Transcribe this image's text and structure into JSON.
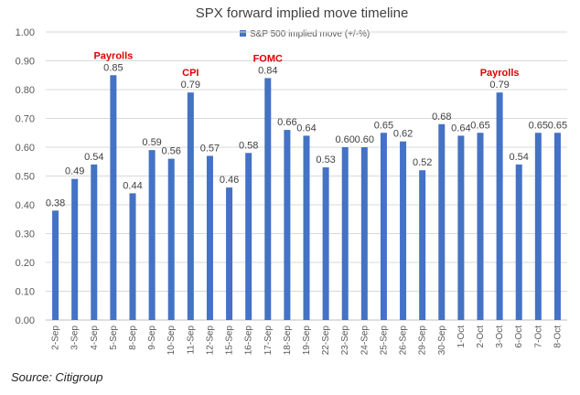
{
  "chart_data": {
    "type": "bar",
    "title": "SPX forward implied move timeline",
    "legend": "S&P 500 implied move (+/-%)",
    "legend_position": "top-center",
    "series_color": "#4472C4",
    "event_color": "#E00000",
    "ylim": [
      0,
      1.0
    ],
    "yticks": [
      "0.00",
      "0.10",
      "0.20",
      "0.30",
      "0.40",
      "0.50",
      "0.60",
      "0.70",
      "0.80",
      "0.90",
      "1.00"
    ],
    "grid": true,
    "categories": [
      "2-Sep",
      "3-Sep",
      "4-Sep",
      "5-Sep",
      "8-Sep",
      "9-Sep",
      "10-Sep",
      "11-Sep",
      "12-Sep",
      "15-Sep",
      "16-Sep",
      "17-Sep",
      "18-Sep",
      "19-Sep",
      "22-Sep",
      "23-Sep",
      "24-Sep",
      "25-Sep",
      "26-Sep",
      "29-Sep",
      "30-Sep",
      "1-Oct",
      "2-Oct",
      "3-Oct",
      "6-Oct",
      "7-Oct",
      "8-Oct"
    ],
    "values": [
      0.38,
      0.49,
      0.54,
      0.85,
      0.44,
      0.59,
      0.56,
      0.79,
      0.57,
      0.46,
      0.58,
      0.84,
      0.66,
      0.64,
      0.53,
      0.6,
      0.6,
      0.65,
      0.62,
      0.52,
      0.68,
      0.64,
      0.65,
      0.79,
      0.54,
      0.65,
      0.65
    ],
    "value_labels": [
      "0.38",
      "0.49",
      "0.54",
      "0.85",
      "0.44",
      "0.59",
      "0.56",
      "0.79",
      "0.57",
      "0.46",
      "0.58",
      "0.84",
      "0.66",
      "0.64",
      "0.53",
      "0.60",
      "0.60",
      "0.65",
      "0.62",
      "0.52",
      "0.68",
      "0.64",
      "0.65",
      "0.79",
      "0.54",
      "0.65",
      "0.65"
    ],
    "annotations": [
      {
        "category": "5-Sep",
        "text": "Payrolls"
      },
      {
        "category": "11-Sep",
        "text": "CPI"
      },
      {
        "category": "17-Sep",
        "text": "FOMC"
      },
      {
        "category": "3-Oct",
        "text": "Payrolls"
      }
    ]
  },
  "footer": {
    "source": "Source: Citigroup"
  }
}
